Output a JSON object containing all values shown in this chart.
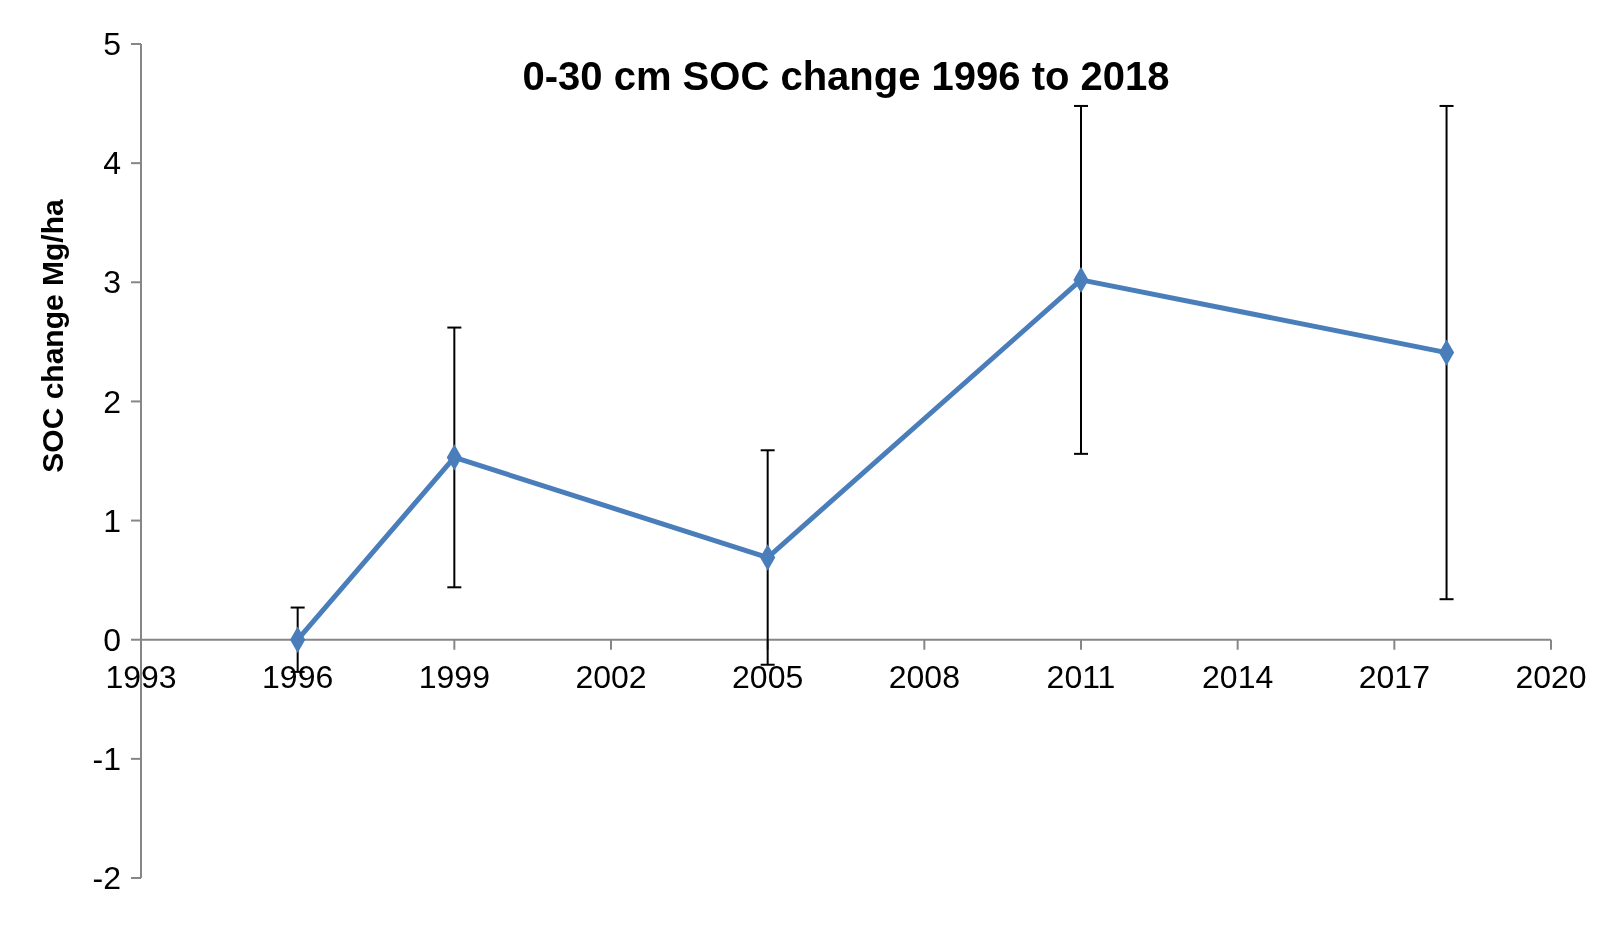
{
  "chart_data": {
    "type": "line",
    "title": "0-30 cm SOC change 1996 to 2018",
    "ylabel": "SOC change Mg/ha",
    "x": [
      1996,
      1999,
      2005,
      2011,
      2018
    ],
    "series": [
      {
        "color": "#4a7ebb",
        "values": [
          0,
          1.53,
          0.69,
          3.02,
          2.41
        ],
        "errors": [
          0.27,
          1.09,
          0.9,
          1.46,
          2.07
        ]
      }
    ],
    "xlim": [
      1993,
      2020
    ],
    "xticks": [
      1993,
      1996,
      1999,
      2002,
      2005,
      2008,
      2011,
      2014,
      2017,
      2020
    ],
    "ylim": [
      -2,
      5
    ],
    "yticks": [
      -2,
      -1,
      0,
      1,
      2,
      3,
      4,
      5
    ],
    "grid": false,
    "marker": "diamond",
    "line_style": "solid"
  }
}
